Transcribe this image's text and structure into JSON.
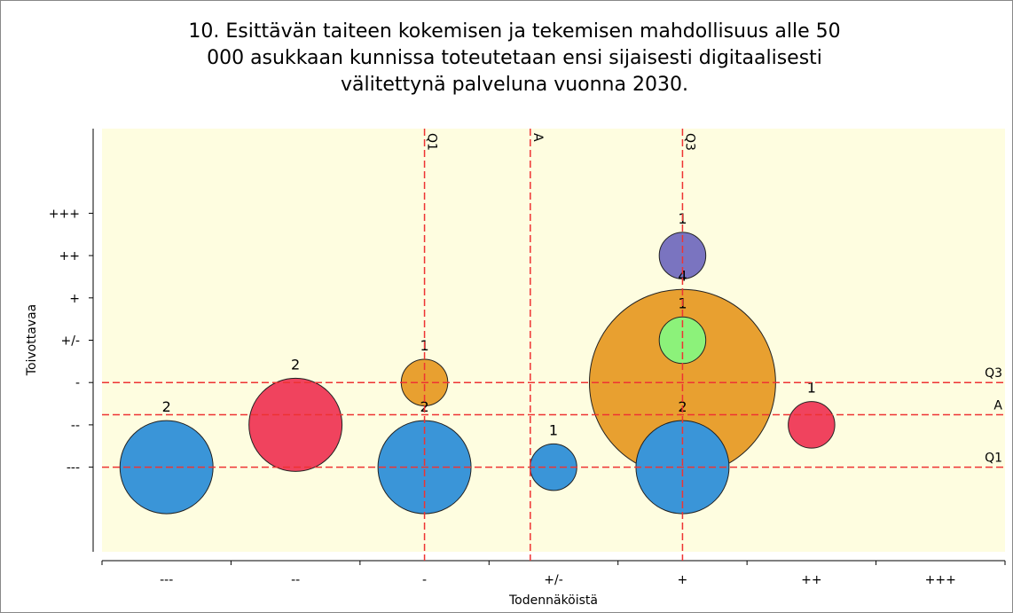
{
  "chart_data": {
    "type": "bubble",
    "title": [
      "10. Esittävän taiteen kokemisen ja tekemisen mahdollisuus alle 50",
      "000 asukkaan kunnissa toteutetaan ensi sijaisesti digitaalisesti",
      "välitettynä palveluna vuonna 2030."
    ],
    "x_label": "Todennäköistä",
    "y_label": "Toivottavaa",
    "xlim": [
      -0.5,
      6.5
    ],
    "ylim": [
      -2,
      8
    ],
    "xticks": [
      {
        "value": 0,
        "label": "---"
      },
      {
        "value": 1,
        "label": "--"
      },
      {
        "value": 2,
        "label": "-"
      },
      {
        "value": 3,
        "label": "+/-"
      },
      {
        "value": 4,
        "label": "+"
      },
      {
        "value": 5,
        "label": "++"
      },
      {
        "value": 6,
        "label": "+++"
      }
    ],
    "yticks": [
      {
        "value": 0,
        "label": "---"
      },
      {
        "value": 1,
        "label": "--"
      },
      {
        "value": 2,
        "label": "-"
      },
      {
        "value": 3,
        "label": "+/-"
      },
      {
        "value": 4,
        "label": "+"
      },
      {
        "value": 5,
        "label": "++"
      },
      {
        "value": 6,
        "label": "+++"
      }
    ],
    "points": [
      {
        "x": 4,
        "y": 2,
        "size": 4,
        "color": "#e8a030"
      },
      {
        "x": 0,
        "y": 0,
        "size": 2,
        "color": "#3a95d8"
      },
      {
        "x": 1,
        "y": 1,
        "size": 2,
        "color": "#f0435e"
      },
      {
        "x": 2,
        "y": 2,
        "size": 1,
        "color": "#e8a030"
      },
      {
        "x": 2,
        "y": 0,
        "size": 2,
        "color": "#3a95d8"
      },
      {
        "x": 3,
        "y": 0,
        "size": 1,
        "color": "#3a95d8"
      },
      {
        "x": 4,
        "y": 0,
        "size": 2,
        "color": "#3a95d8"
      },
      {
        "x": 4,
        "y": 3,
        "size": 1,
        "color": "#8cf27a"
      },
      {
        "x": 4,
        "y": 5,
        "size": 1,
        "color": "#7a74c0"
      },
      {
        "x": 5,
        "y": 1,
        "size": 1,
        "color": "#f0435e"
      }
    ],
    "vlines": [
      {
        "value": 2,
        "label": "Q1"
      },
      {
        "value": 2.82,
        "label": "A"
      },
      {
        "value": 4,
        "label": "Q3"
      }
    ],
    "hlines": [
      {
        "value": 2,
        "label": "Q3"
      },
      {
        "value": 1.24,
        "label": "A"
      },
      {
        "value": 0,
        "label": "Q1"
      }
    ],
    "background": "#fefde0"
  }
}
